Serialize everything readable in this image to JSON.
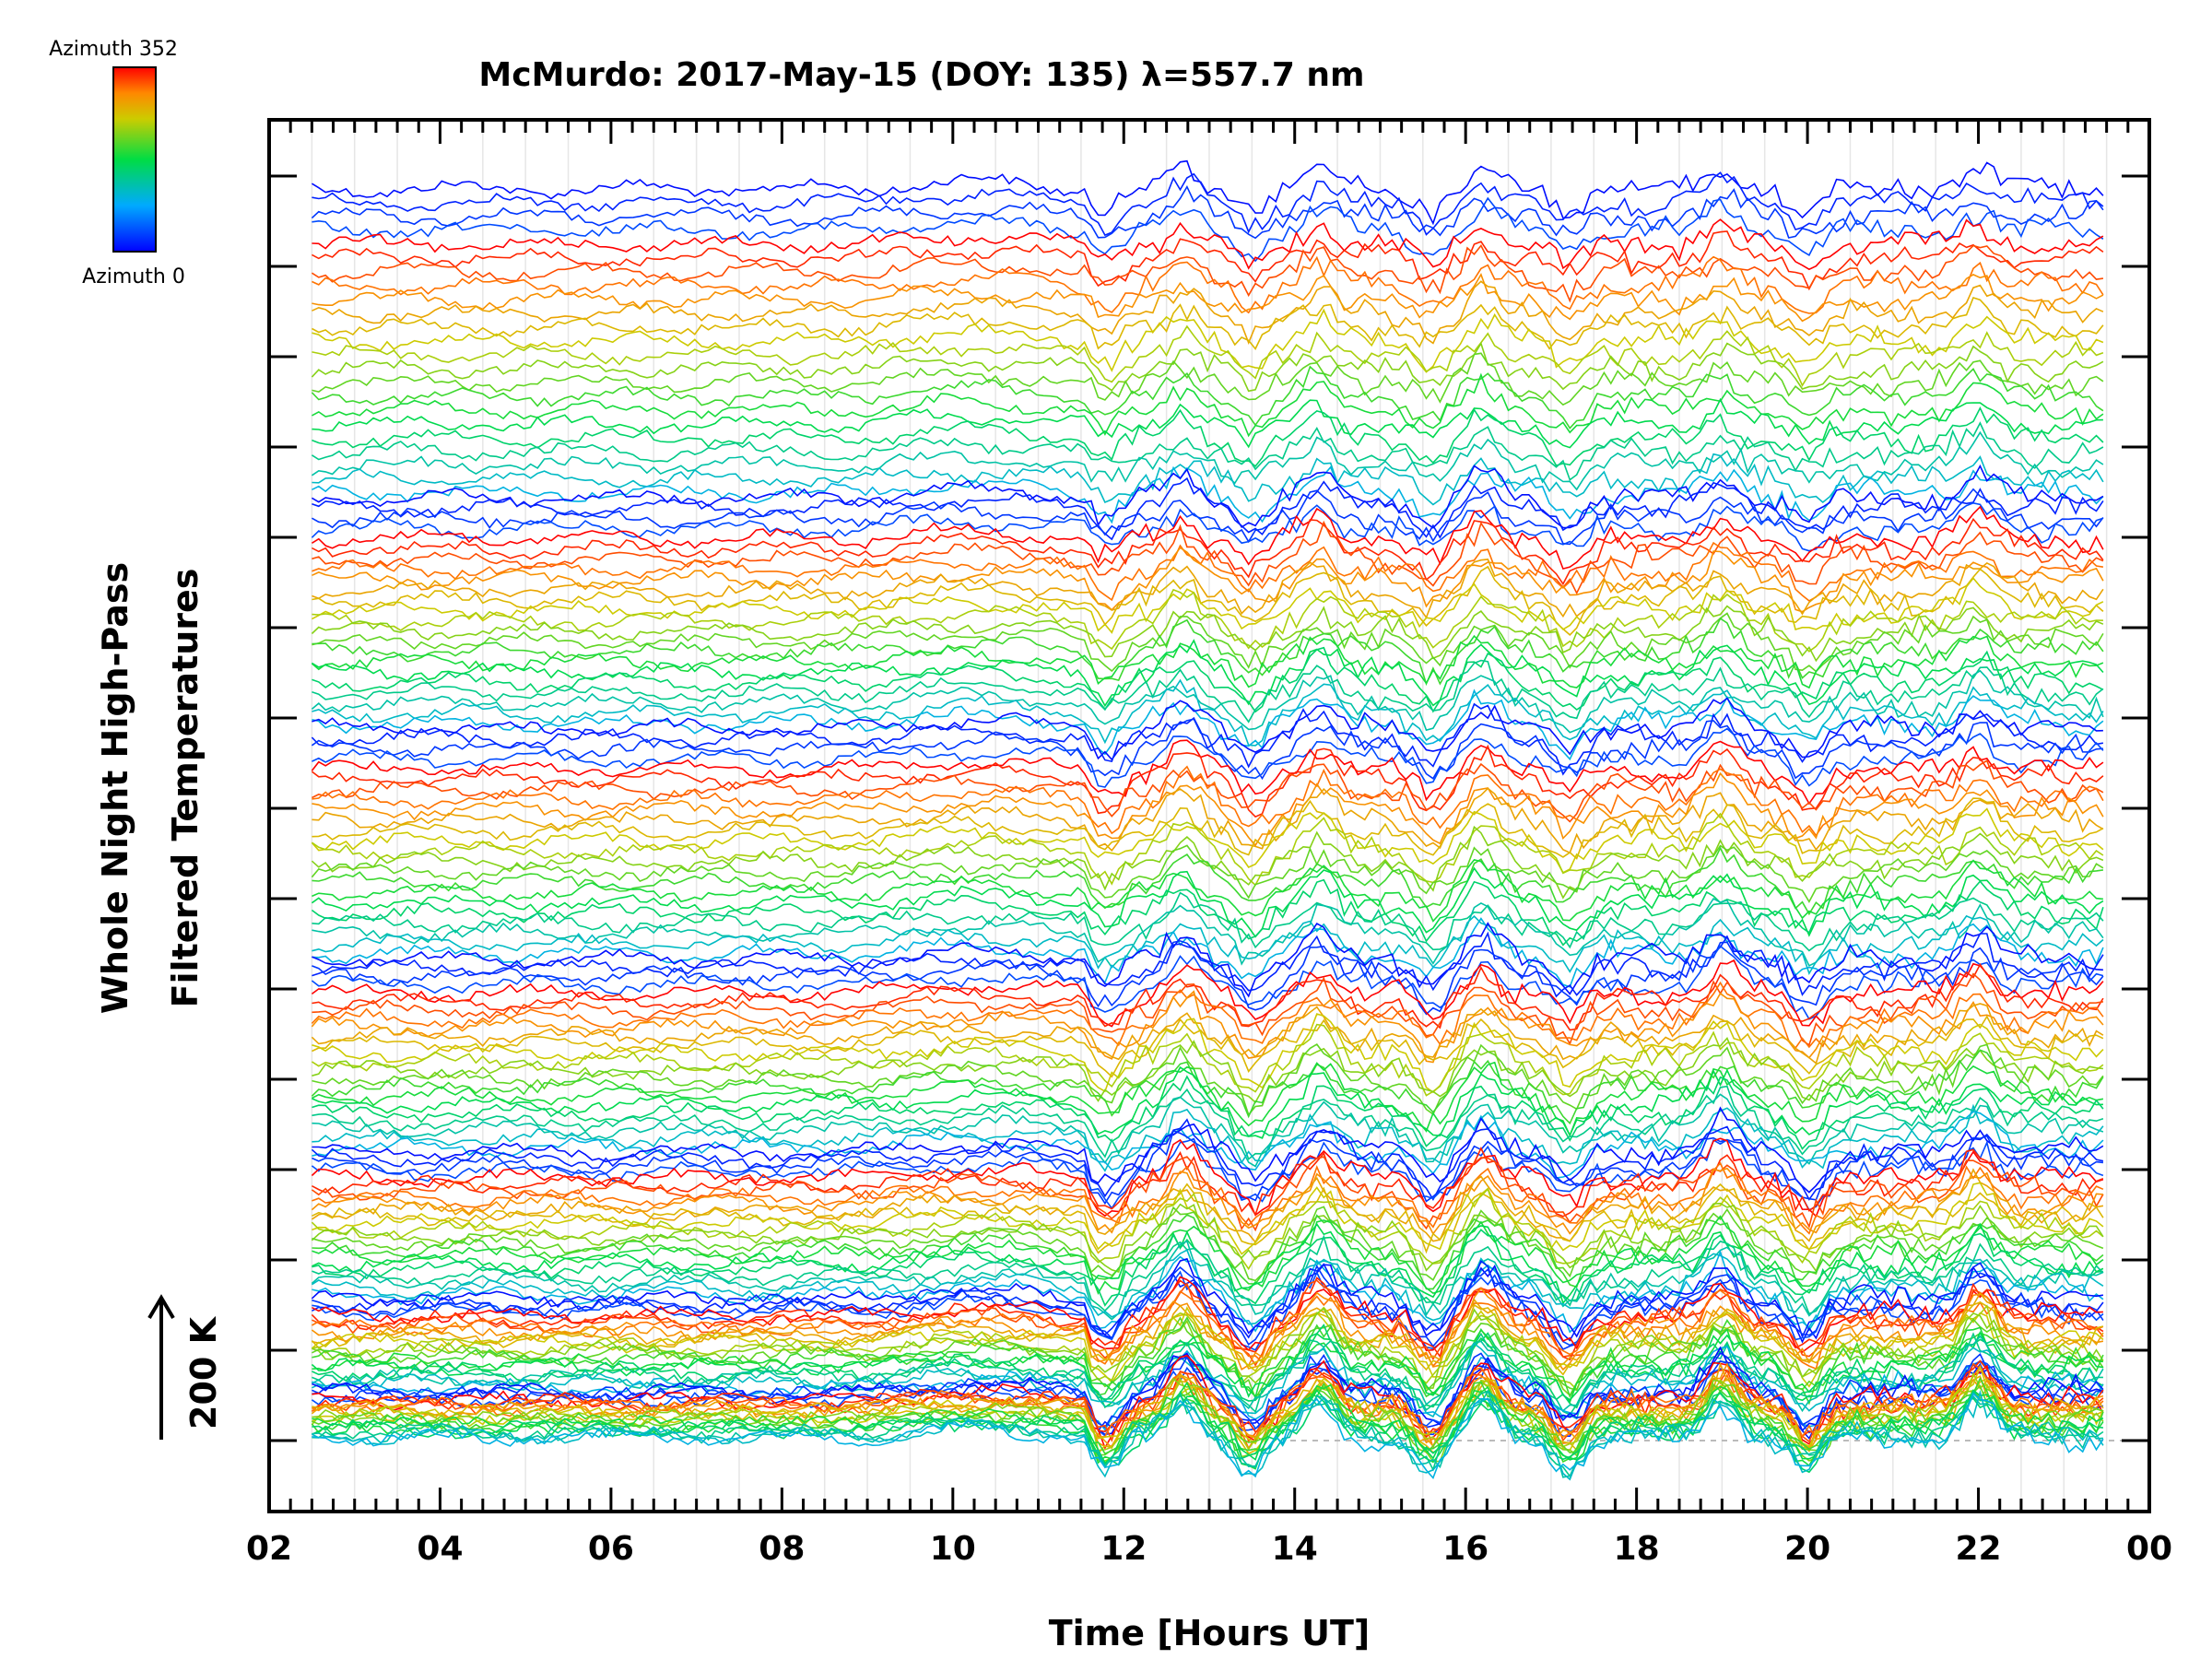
{
  "chart_data": {
    "type": "line",
    "title": "McMurdo: 2017-May-15 (DOY: 135) λ=557.7 nm",
    "xlabel": "Time [Hours UT]",
    "ylabel_line1": "Whole Night High-Pass",
    "ylabel_line2": "Filtered Temperatures",
    "scale_label": "200 K",
    "xlim": [
      2,
      24
    ],
    "x_ticks": [
      "02",
      "04",
      "06",
      "08",
      "10",
      "12",
      "14",
      "16",
      "18",
      "20",
      "22",
      "00"
    ],
    "x_start": 2.5,
    "x_end": 23.5,
    "legend": {
      "top_label": "Azimuth 352",
      "bottom_label": "Azimuth 0",
      "min_azimuth": 0,
      "max_azimuth": 352,
      "colormap": "rainbow (blue to red)"
    },
    "n_groups": 7,
    "traces_per_group": 23,
    "event_times_hours": [
      11.8,
      12.7,
      13.5,
      14.3,
      15.6,
      16.2,
      17.2,
      19.0,
      20.0,
      22.0
    ],
    "series_note": "Stacked high-pass filtered temperature traces, one per azimuth/zenith sample, colored by azimuth 0-352"
  }
}
